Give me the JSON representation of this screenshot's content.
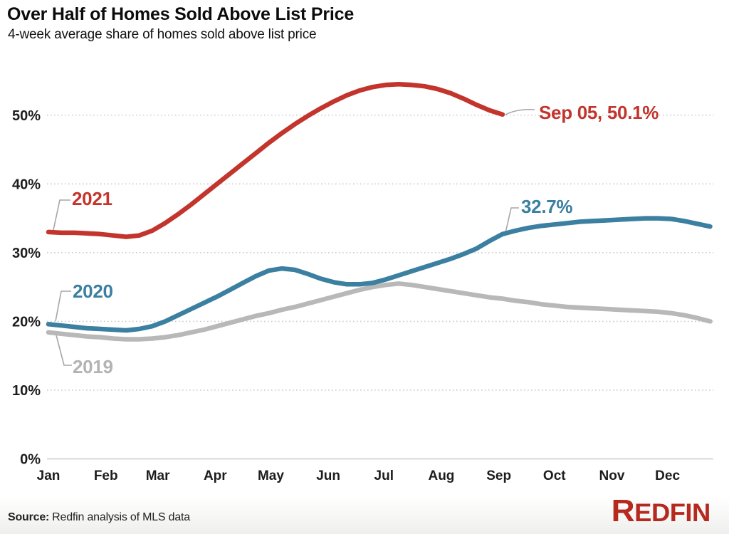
{
  "header": {
    "title": "Over Half of Homes Sold Above List Price",
    "subtitle": "4-week average share of homes sold above list price"
  },
  "annotations": {
    "label_2021": "2021",
    "label_2020": "2020",
    "label_2019": "2019",
    "red_end_label": "Sep 05, 50.1%",
    "blue_end_label": "32.7%"
  },
  "footer": {
    "source_label": "Source:",
    "source_text": "Redfin analysis of MLS data",
    "brand_first": "R",
    "brand_rest": "EDFIN"
  },
  "colors": {
    "series_2021_red": "#c2342c",
    "series_2020_blue": "#3b7fa1",
    "series_2019_gray": "#b8b8b8",
    "gridline": "#cccccc",
    "axis_text": "#1d1d1f",
    "connector": "#a6a6a6",
    "logo_red": "#b6291f",
    "background": "#ffffff"
  },
  "chart_data": {
    "type": "line",
    "title": "Over Half of Homes Sold Above List Price",
    "subtitle": "4-week average share of homes sold above list price",
    "x_unit": "weekly points, Jan through Dec",
    "ylim": [
      0,
      57
    ],
    "grid": "horizontal dotted gridlines, solid baseline at 0%",
    "legend_position": "inline labels at line starts",
    "yticks": [
      {
        "value": 0,
        "label": "0%"
      },
      {
        "value": 10,
        "label": "10%"
      },
      {
        "value": 20,
        "label": "20%"
      },
      {
        "value": 30,
        "label": "30%"
      },
      {
        "value": 40,
        "label": "40%"
      },
      {
        "value": 50,
        "label": "50%"
      }
    ],
    "xticklabels": [
      "Jan",
      "Feb",
      "Mar",
      "Apr",
      "May",
      "Jun",
      "Jul",
      "Aug",
      "Sep",
      "Oct",
      "Nov",
      "Dec"
    ],
    "series": [
      {
        "name": "2019",
        "color": "#b8b8b8",
        "values": [
          18.4,
          18.2,
          18.0,
          17.8,
          17.7,
          17.5,
          17.4,
          17.4,
          17.5,
          17.7,
          18.0,
          18.4,
          18.8,
          19.3,
          19.8,
          20.3,
          20.8,
          21.2,
          21.7,
          22.1,
          22.6,
          23.1,
          23.6,
          24.1,
          24.6,
          25.0,
          25.3,
          25.5,
          25.3,
          25.0,
          24.7,
          24.4,
          24.1,
          23.8,
          23.5,
          23.3,
          23.0,
          22.8,
          22.5,
          22.3,
          22.1,
          22.0,
          21.9,
          21.8,
          21.7,
          21.6,
          21.5,
          21.4,
          21.2,
          20.9,
          20.5,
          20.0
        ]
      },
      {
        "name": "2020",
        "color": "#3b7fa1",
        "end_annotation": "32.7%",
        "values": [
          19.6,
          19.4,
          19.2,
          19.0,
          18.9,
          18.8,
          18.7,
          18.9,
          19.3,
          20.0,
          20.9,
          21.8,
          22.7,
          23.6,
          24.6,
          25.6,
          26.6,
          27.4,
          27.7,
          27.5,
          26.9,
          26.2,
          25.7,
          25.4,
          25.4,
          25.6,
          26.1,
          26.7,
          27.3,
          27.9,
          28.5,
          29.1,
          29.8,
          30.6,
          31.7,
          32.7,
          33.2,
          33.6,
          33.9,
          34.1,
          34.3,
          34.5,
          34.6,
          34.7,
          34.8,
          34.9,
          35.0,
          35.0,
          34.9,
          34.6,
          34.2,
          33.8
        ]
      },
      {
        "name": "2021",
        "color": "#c2342c",
        "end_annotation": "Sep 05, 50.1%",
        "values": [
          33.0,
          32.9,
          32.9,
          32.8,
          32.7,
          32.5,
          32.3,
          32.5,
          33.2,
          34.3,
          35.6,
          37.0,
          38.5,
          40.0,
          41.5,
          43.0,
          44.5,
          46.0,
          47.4,
          48.7,
          49.9,
          51.0,
          52.0,
          52.9,
          53.6,
          54.1,
          54.4,
          54.5,
          54.4,
          54.2,
          53.8,
          53.2,
          52.4,
          51.5,
          50.7,
          50.1
        ]
      }
    ]
  }
}
